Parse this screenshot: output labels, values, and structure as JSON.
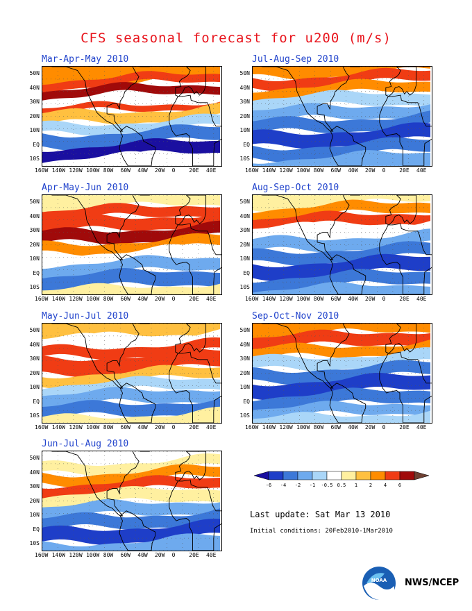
{
  "title": "CFS seasonal forecast for u200 (m/s)",
  "panels": [
    {
      "label": "Mar-Apr-May 2010"
    },
    {
      "label": "Apr-May-Jun 2010"
    },
    {
      "label": "May-Jun-Jul 2010"
    },
    {
      "label": "Jun-Jul-Aug 2010"
    },
    {
      "label": "Jul-Aug-Sep 2010"
    },
    {
      "label": "Aug-Sep-Oct 2010"
    },
    {
      "label": "Sep-Oct-Nov 2010"
    }
  ],
  "lat_labels": [
    "50N",
    "40N",
    "30N",
    "20N",
    "10N",
    "EQ",
    "10S"
  ],
  "lon_labels": [
    "160W",
    "140W",
    "120W",
    "100W",
    "80W",
    "60W",
    "40W",
    "20W",
    "0",
    "20E",
    "40E"
  ],
  "colorbar": {
    "levels": [
      "-6",
      "-4",
      "-2",
      "-1",
      "-0.5",
      "0.5",
      "1",
      "2",
      "4",
      "6"
    ],
    "colors": [
      "#1a0fa0",
      "#1e3ec8",
      "#3c78d8",
      "#6eaaee",
      "#aad6f8",
      "#ffffff",
      "#fff0a0",
      "#ffc040",
      "#ff8c00",
      "#f03c14",
      "#a00a0a",
      "#6e4032"
    ]
  },
  "last_update": "Last update: Sat Mar 13 2010",
  "initial_conditions": "Initial conditions: 20Feb2010-1Mar2010",
  "logo_text": "NOAA",
  "agency": "NWS/NCEP"
}
